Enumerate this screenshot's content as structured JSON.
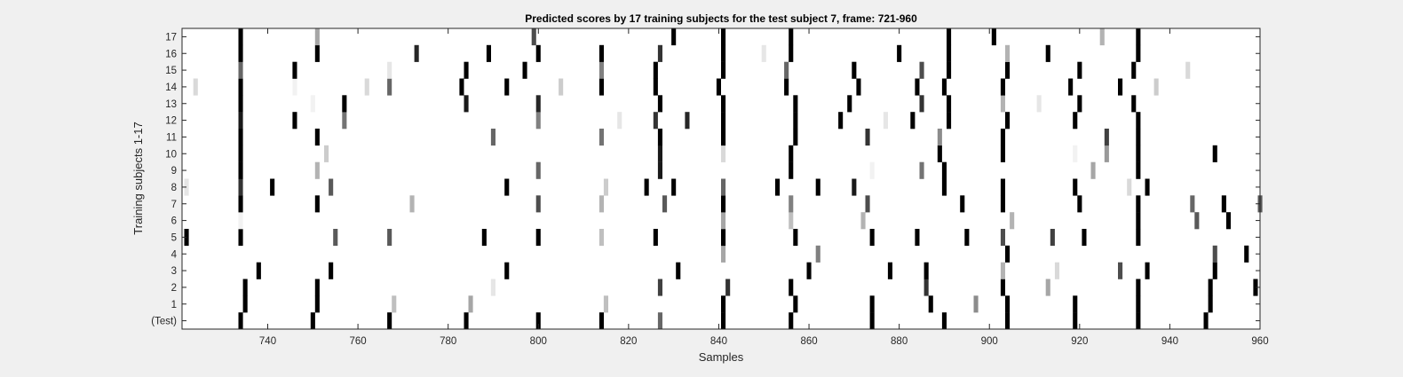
{
  "chart_data": {
    "type": "heatmap",
    "title": "Predicted scores by 17 training subjects for the test subject 7, frame: 721-960",
    "xlabel": "Samples",
    "ylabel": "Training subjects 1-17",
    "xlim": [
      721,
      960
    ],
    "x_ticks": [
      740,
      760,
      780,
      800,
      820,
      840,
      860,
      880,
      900,
      920,
      940,
      960
    ],
    "rows": [
      "(Test)",
      "1",
      "2",
      "3",
      "4",
      "5",
      "6",
      "7",
      "8",
      "9",
      "10",
      "11",
      "12",
      "13",
      "14",
      "15",
      "16",
      "17"
    ],
    "colormap": "gray (white = 0, black = 1)",
    "grid": false,
    "marks": [
      {
        "row": "(Test)",
        "values": [
          [
            734,
            1
          ],
          [
            750,
            1
          ],
          [
            767,
            1
          ],
          [
            784,
            1
          ],
          [
            800,
            1
          ],
          [
            814,
            1
          ],
          [
            827,
            0.6
          ],
          [
            841,
            1
          ],
          [
            856,
            1
          ],
          [
            874,
            1
          ],
          [
            890,
            1
          ],
          [
            904,
            1
          ],
          [
            919,
            1
          ],
          [
            933,
            1
          ],
          [
            948,
            1
          ]
        ]
      },
      {
        "row": "1",
        "values": [
          [
            735,
            1
          ],
          [
            751,
            1
          ],
          [
            768,
            0.25
          ],
          [
            785,
            0.35
          ],
          [
            815,
            0.25
          ],
          [
            841,
            1
          ],
          [
            857,
            1
          ],
          [
            874,
            1
          ],
          [
            887,
            1
          ],
          [
            897,
            0.45
          ],
          [
            904,
            1
          ],
          [
            919,
            1
          ],
          [
            933,
            1
          ],
          [
            949,
            1
          ]
        ]
      },
      {
        "row": "2",
        "values": [
          [
            735,
            1
          ],
          [
            751,
            1
          ],
          [
            790,
            0.1
          ],
          [
            827,
            0.75
          ],
          [
            842,
            0.8
          ],
          [
            856,
            1
          ],
          [
            886,
            0.8
          ],
          [
            903,
            1
          ],
          [
            913,
            0.35
          ],
          [
            933,
            1
          ],
          [
            949,
            1
          ],
          [
            959,
            1
          ]
        ]
      },
      {
        "row": "3",
        "values": [
          [
            738,
            1
          ],
          [
            754,
            1
          ],
          [
            793,
            1
          ],
          [
            831,
            1
          ],
          [
            860,
            1
          ],
          [
            878,
            1
          ],
          [
            886,
            1
          ],
          [
            903,
            0.3
          ],
          [
            915,
            0.15
          ],
          [
            929,
            0.7
          ],
          [
            935,
            1
          ],
          [
            950,
            1
          ]
        ]
      },
      {
        "row": "4",
        "values": [
          [
            841,
            0.35
          ],
          [
            862,
            0.5
          ],
          [
            904,
            1
          ],
          [
            950,
            0.7
          ],
          [
            957,
            1
          ]
        ]
      },
      {
        "row": "5",
        "values": [
          [
            722,
            1
          ],
          [
            734,
            1
          ],
          [
            755,
            0.65
          ],
          [
            767,
            0.65
          ],
          [
            788,
            1
          ],
          [
            800,
            1
          ],
          [
            814,
            0.25
          ],
          [
            826,
            1
          ],
          [
            841,
            1
          ],
          [
            857,
            1
          ],
          [
            874,
            1
          ],
          [
            884,
            1
          ],
          [
            895,
            1
          ],
          [
            903,
            0.7
          ],
          [
            914,
            0.75
          ],
          [
            921,
            1
          ],
          [
            933,
            1
          ]
        ]
      },
      {
        "row": "6",
        "values": [
          [
            734,
            0.05
          ],
          [
            841,
            0.35
          ],
          [
            856,
            0.25
          ],
          [
            872,
            0.3
          ],
          [
            905,
            0.3
          ],
          [
            933,
            1
          ],
          [
            946,
            0.65
          ],
          [
            953,
            1
          ]
        ]
      },
      {
        "row": "7",
        "values": [
          [
            734,
            1
          ],
          [
            751,
            1
          ],
          [
            772,
            0.3
          ],
          [
            800,
            0.7
          ],
          [
            814,
            0.3
          ],
          [
            828,
            0.65
          ],
          [
            841,
            1
          ],
          [
            856,
            0.5
          ],
          [
            873,
            0.7
          ],
          [
            894,
            1
          ],
          [
            903,
            1
          ],
          [
            920,
            1
          ],
          [
            933,
            1
          ],
          [
            945,
            0.6
          ],
          [
            952,
            1
          ],
          [
            960,
            0.65
          ]
        ]
      },
      {
        "row": "8",
        "values": [
          [
            722,
            0.1
          ],
          [
            734,
            0.8
          ],
          [
            741,
            1
          ],
          [
            754,
            0.65
          ],
          [
            793,
            1
          ],
          [
            815,
            0.2
          ],
          [
            824,
            1
          ],
          [
            830,
            1
          ],
          [
            841,
            0.6
          ],
          [
            853,
            1
          ],
          [
            862,
            1
          ],
          [
            870,
            0.9
          ],
          [
            890,
            1
          ],
          [
            903,
            1
          ],
          [
            919,
            1
          ],
          [
            931,
            0.15
          ],
          [
            935,
            1
          ]
        ]
      },
      {
        "row": "9",
        "values": [
          [
            734,
            1
          ],
          [
            751,
            0.3
          ],
          [
            800,
            0.6
          ],
          [
            827,
            0.9
          ],
          [
            856,
            1
          ],
          [
            874,
            0.05
          ],
          [
            885,
            0.55
          ],
          [
            890,
            1
          ],
          [
            923,
            0.35
          ],
          [
            933,
            1
          ]
        ]
      },
      {
        "row": "10",
        "values": [
          [
            734,
            1
          ],
          [
            753,
            0.2
          ],
          [
            827,
            0.9
          ],
          [
            841,
            0.15
          ],
          [
            856,
            1
          ],
          [
            889,
            1
          ],
          [
            903,
            1
          ],
          [
            919,
            0.05
          ],
          [
            926,
            0.4
          ],
          [
            933,
            1
          ],
          [
            950,
            1
          ]
        ]
      },
      {
        "row": "11",
        "values": [
          [
            734,
            1
          ],
          [
            751,
            1
          ],
          [
            790,
            0.6
          ],
          [
            814,
            0.55
          ],
          [
            827,
            1
          ],
          [
            841,
            1
          ],
          [
            857,
            1
          ],
          [
            873,
            0.8
          ],
          [
            889,
            0.45
          ],
          [
            903,
            1
          ],
          [
            926,
            0.75
          ],
          [
            933,
            1
          ]
        ]
      },
      {
        "row": "12",
        "values": [
          [
            734,
            0.9
          ],
          [
            746,
            1
          ],
          [
            757,
            0.55
          ],
          [
            800,
            0.5
          ],
          [
            818,
            0.1
          ],
          [
            826,
            0.8
          ],
          [
            833,
            0.85
          ],
          [
            841,
            1
          ],
          [
            857,
            1
          ],
          [
            867,
            1
          ],
          [
            877,
            0.1
          ],
          [
            883,
            1
          ],
          [
            891,
            1
          ],
          [
            904,
            1
          ],
          [
            919,
            1
          ],
          [
            933,
            1
          ]
        ]
      },
      {
        "row": "13",
        "values": [
          [
            734,
            1
          ],
          [
            750,
            0.05
          ],
          [
            757,
            1
          ],
          [
            784,
            0.9
          ],
          [
            800,
            0.85
          ],
          [
            827,
            1
          ],
          [
            841,
            1
          ],
          [
            857,
            1
          ],
          [
            869,
            1
          ],
          [
            885,
            0.8
          ],
          [
            891,
            1
          ],
          [
            903,
            0.3
          ],
          [
            911,
            0.1
          ],
          [
            920,
            1
          ],
          [
            932,
            1
          ]
        ]
      },
      {
        "row": "14",
        "values": [
          [
            724,
            0.15
          ],
          [
            734,
            1
          ],
          [
            746,
            0.05
          ],
          [
            762,
            0.15
          ],
          [
            767,
            0.6
          ],
          [
            783,
            1
          ],
          [
            793,
            1
          ],
          [
            805,
            0.2
          ],
          [
            814,
            1
          ],
          [
            826,
            1
          ],
          [
            840,
            1
          ],
          [
            855,
            1
          ],
          [
            871,
            1
          ],
          [
            884,
            1
          ],
          [
            890,
            1
          ],
          [
            903,
            1
          ],
          [
            918,
            1
          ],
          [
            929,
            1
          ],
          [
            937,
            0.2
          ]
        ]
      },
      {
        "row": "15",
        "values": [
          [
            734,
            0.6
          ],
          [
            746,
            1
          ],
          [
            767,
            0.1
          ],
          [
            784,
            1
          ],
          [
            797,
            1
          ],
          [
            814,
            0.5
          ],
          [
            826,
            1
          ],
          [
            841,
            1
          ],
          [
            855,
            0.6
          ],
          [
            870,
            1
          ],
          [
            885,
            0.7
          ],
          [
            891,
            1
          ],
          [
            904,
            1
          ],
          [
            920,
            1
          ],
          [
            932,
            1
          ],
          [
            944,
            0.15
          ]
        ]
      },
      {
        "row": "16",
        "values": [
          [
            734,
            1
          ],
          [
            751,
            1
          ],
          [
            773,
            0.85
          ],
          [
            789,
            1
          ],
          [
            800,
            1
          ],
          [
            814,
            1
          ],
          [
            827,
            0.8
          ],
          [
            841,
            1
          ],
          [
            850,
            0.1
          ],
          [
            856,
            1
          ],
          [
            880,
            1
          ],
          [
            891,
            1
          ],
          [
            904,
            0.3
          ],
          [
            913,
            1
          ],
          [
            933,
            1
          ]
        ]
      },
      {
        "row": "17",
        "values": [
          [
            734,
            1
          ],
          [
            751,
            0.35
          ],
          [
            799,
            0.7
          ],
          [
            830,
            1
          ],
          [
            841,
            1
          ],
          [
            856,
            1
          ],
          [
            891,
            1
          ],
          [
            901,
            1
          ],
          [
            925,
            0.3
          ],
          [
            933,
            1
          ]
        ]
      }
    ]
  }
}
